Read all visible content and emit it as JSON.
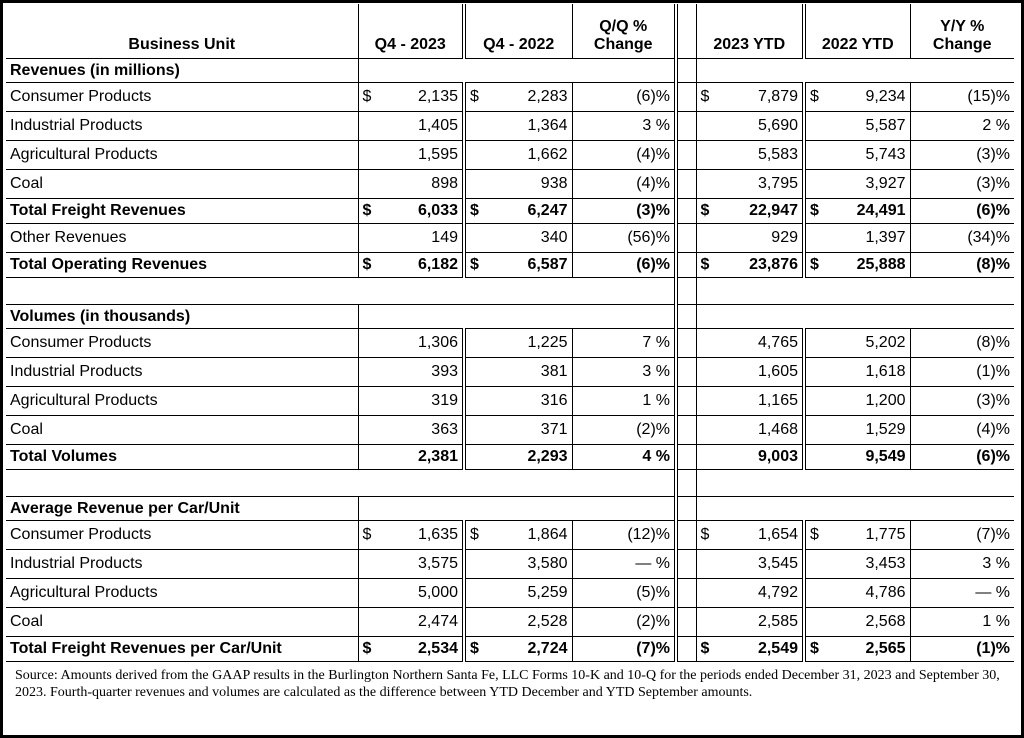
{
  "table": {
    "columns": [
      "Business Unit",
      "Q4 - 2023",
      "Q4 - 2022",
      "Q/Q %\nChange",
      "2023 YTD",
      "2022 YTD",
      "Y/Y %\nChange"
    ],
    "currency": "$",
    "sections": [
      {
        "title": "Revenues (in millions)",
        "rows": [
          {
            "label": "Consumer Products",
            "values": [
              "2,135",
              "2,283",
              "(6)%",
              "7,879",
              "9,234",
              "(15)%"
            ],
            "dollar": true
          },
          {
            "label": "Industrial Products",
            "values": [
              "1,405",
              "1,364",
              "3 %",
              "5,690",
              "5,587",
              "2 %"
            ]
          },
          {
            "label": "Agricultural Products",
            "values": [
              "1,595",
              "1,662",
              "(4)%",
              "5,583",
              "5,743",
              "(3)%"
            ]
          },
          {
            "label": "Coal",
            "values": [
              "898",
              "938",
              "(4)%",
              "3,795",
              "3,927",
              "(3)%"
            ]
          },
          {
            "label": "Total Freight Revenues",
            "values": [
              "6,033",
              "6,247",
              "(3)%",
              "22,947",
              "24,491",
              "(6)%"
            ],
            "dollar": true,
            "total": true
          },
          {
            "label": "Other Revenues",
            "values": [
              "149",
              "340",
              "(56)%",
              "929",
              "1,397",
              "(34)%"
            ]
          },
          {
            "label": "Total Operating Revenues",
            "values": [
              "6,182",
              "6,587",
              "(6)%",
              "23,876",
              "25,888",
              "(8)%"
            ],
            "dollar": true,
            "total": true
          }
        ]
      },
      {
        "title": "Volumes (in thousands)",
        "rows": [
          {
            "label": "Consumer Products",
            "values": [
              "1,306",
              "1,225",
              "7 %",
              "4,765",
              "5,202",
              "(8)%"
            ]
          },
          {
            "label": "Industrial Products",
            "values": [
              "393",
              "381",
              "3 %",
              "1,605",
              "1,618",
              "(1)%"
            ]
          },
          {
            "label": "Agricultural Products",
            "values": [
              "319",
              "316",
              "1 %",
              "1,165",
              "1,200",
              "(3)%"
            ]
          },
          {
            "label": "Coal",
            "values": [
              "363",
              "371",
              "(2)%",
              "1,468",
              "1,529",
              "(4)%"
            ]
          },
          {
            "label": "Total Volumes",
            "values": [
              "2,381",
              "2,293",
              "4 %",
              "9,003",
              "9,549",
              "(6)%"
            ],
            "total": true
          }
        ]
      },
      {
        "title": "Average Revenue per Car/Unit",
        "rows": [
          {
            "label": "Consumer Products",
            "values": [
              "1,635",
              "1,864",
              "(12)%",
              "1,654",
              "1,775",
              "(7)%"
            ],
            "dollar": true
          },
          {
            "label": "Industrial Products",
            "values": [
              "3,575",
              "3,580",
              "— %",
              "3,545",
              "3,453",
              "3 %"
            ]
          },
          {
            "label": "Agricultural Products",
            "values": [
              "5,000",
              "5,259",
              "(5)%",
              "4,792",
              "4,786",
              "— %"
            ]
          },
          {
            "label": "Coal",
            "values": [
              "2,474",
              "2,528",
              "(2)%",
              "2,585",
              "2,568",
              "1 %"
            ]
          },
          {
            "label": "Total Freight Revenues per Car/Unit",
            "values": [
              "2,534",
              "2,724",
              "(7)%",
              "2,549",
              "2,565",
              "(1)%"
            ],
            "dollar": true,
            "total": true
          }
        ]
      }
    ],
    "source": "Source: Amounts derived from the GAAP results in the Burlington Northern Santa Fe, LLC Forms 10-K and 10-Q for the periods ended December 31, 2023 and September 30, 2023. Fourth-quarter revenues and volumes are calculated as the difference between YTD December and YTD September amounts."
  }
}
